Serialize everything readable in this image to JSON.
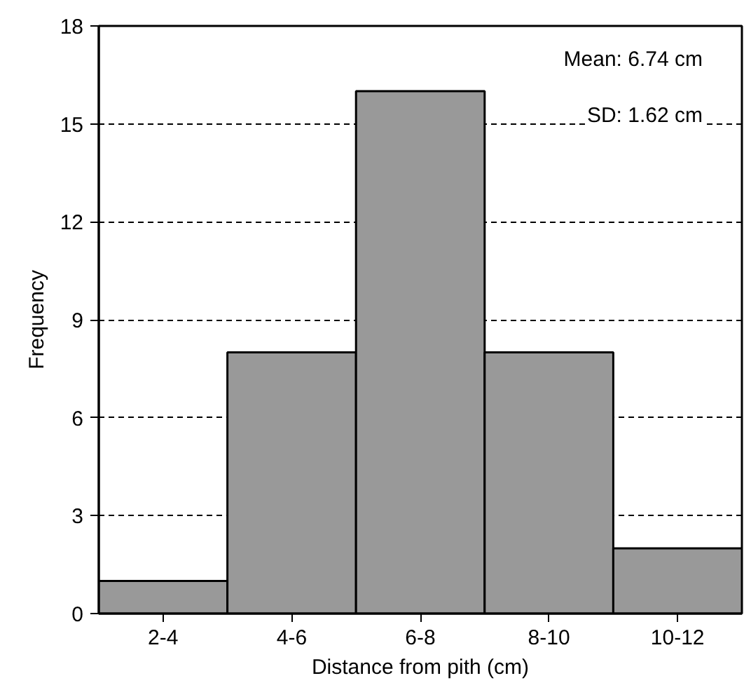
{
  "chart_data": {
    "type": "bar",
    "xlabel": "Distance from pith (cm)",
    "ylabel": "Frequency",
    "categories": [
      "2-4",
      "4-6",
      "6-8",
      "8-10",
      "10-12"
    ],
    "values": [
      1,
      8,
      16,
      8,
      2
    ],
    "color": "#999999",
    "ylim": [
      0,
      18
    ],
    "yticks": [
      0,
      3,
      6,
      9,
      12,
      15,
      18
    ],
    "grid": "y",
    "annotations": [
      "Mean: 6.74 cm",
      "SD: 1.62 cm"
    ]
  }
}
